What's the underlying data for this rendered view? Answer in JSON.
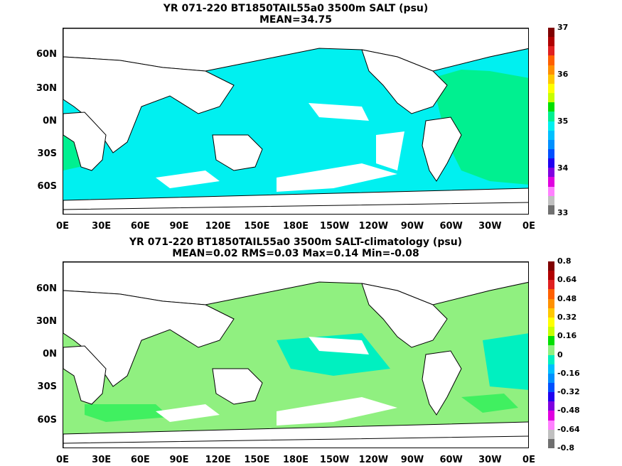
{
  "panels": [
    {
      "title_line1": "YR 071-220 BT1850TAIL55a0 3500m SALT (psu)",
      "title_line2": "MEAN=34.75",
      "lat_labels": [
        "60N",
        "30N",
        "0N",
        "30S",
        "60S"
      ],
      "lon_labels": [
        "0E",
        "30E",
        "60E",
        "90E",
        "120E",
        "150E",
        "180E",
        "150W",
        "120W",
        "90W",
        "60W",
        "30W",
        "0E"
      ],
      "colorbar_labels": [
        "37",
        "36",
        "35",
        "34",
        "33"
      ],
      "colors": {
        "main": "#00f0f0",
        "secondary": "#00f090"
      },
      "colorbar_colors": [
        "#800000",
        "#b00000",
        "#e02020",
        "#ff6000",
        "#ff9000",
        "#ffc800",
        "#ffff00",
        "#c8ff00",
        "#00e000",
        "#00f090",
        "#00f0f0",
        "#00c0ff",
        "#0090ff",
        "#0050ff",
        "#2000f0",
        "#8000e0",
        "#e000e0",
        "#ff80ff",
        "#c0c0c0",
        "#707070"
      ]
    },
    {
      "title_line1": "YR 071-220 BT1850TAIL55a0 3500m SALT-climatology (psu)",
      "title_line2": "MEAN=0.02   RMS=0.03   Max=0.14   Min=-0.08",
      "lat_labels": [
        "60N",
        "30N",
        "0N",
        "30S",
        "60S"
      ],
      "lon_labels": [
        "0E",
        "30E",
        "60E",
        "90E",
        "120E",
        "150E",
        "180E",
        "150W",
        "120W",
        "90W",
        "60W",
        "30W",
        "0E"
      ],
      "colorbar_labels": [
        "0.8",
        "0.64",
        "0.48",
        "0.32",
        "0.16",
        "0",
        "-0.16",
        "-0.32",
        "-0.48",
        "-0.64",
        "-0.8"
      ],
      "colors": {
        "main": "#90f080",
        "secondary": "#40f060",
        "tertiary": "#00f0c0"
      },
      "colorbar_colors": [
        "#800000",
        "#b00000",
        "#e02020",
        "#ff6000",
        "#ff9000",
        "#ffc800",
        "#ffff00",
        "#c8ff00",
        "#00e000",
        "#90f080",
        "#00f0c0",
        "#00c0ff",
        "#0090ff",
        "#0050ff",
        "#2000f0",
        "#8000e0",
        "#e000e0",
        "#ff80ff",
        "#c0c0c0",
        "#707070"
      ]
    }
  ]
}
